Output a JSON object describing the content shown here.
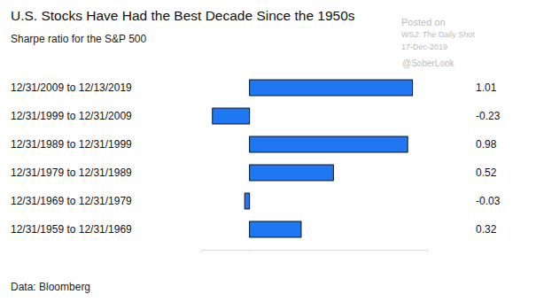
{
  "chart_data": {
    "type": "bar",
    "orientation": "horizontal",
    "title": "U.S. Stocks Have Had the Best Decade Since the 1950s",
    "subtitle": "Sharpe ratio for the S&P 500",
    "annotations": [
      "Posted on",
      "WSJ: The Daily Shot",
      "17-Dec-2019",
      "@SoberLook",
      "Data: Bloomberg"
    ],
    "categories": [
      "12/31/2009 to 12/13/2019",
      "12/31/1999 to 12/31/2009",
      "12/31/1989 to 12/31/1999",
      "12/31/1979 to 12/31/1989",
      "12/31/1969 to 12/31/1979",
      "12/31/1959 to 12/31/1969"
    ],
    "values": [
      1.01,
      -0.23,
      0.98,
      0.52,
      -0.03,
      0.32
    ],
    "color": "#1f78f2",
    "xlim": [
      -0.3,
      1.1
    ],
    "xticks": [
      0
    ],
    "tick_labels": false,
    "data_labels": true,
    "grid": false
  }
}
